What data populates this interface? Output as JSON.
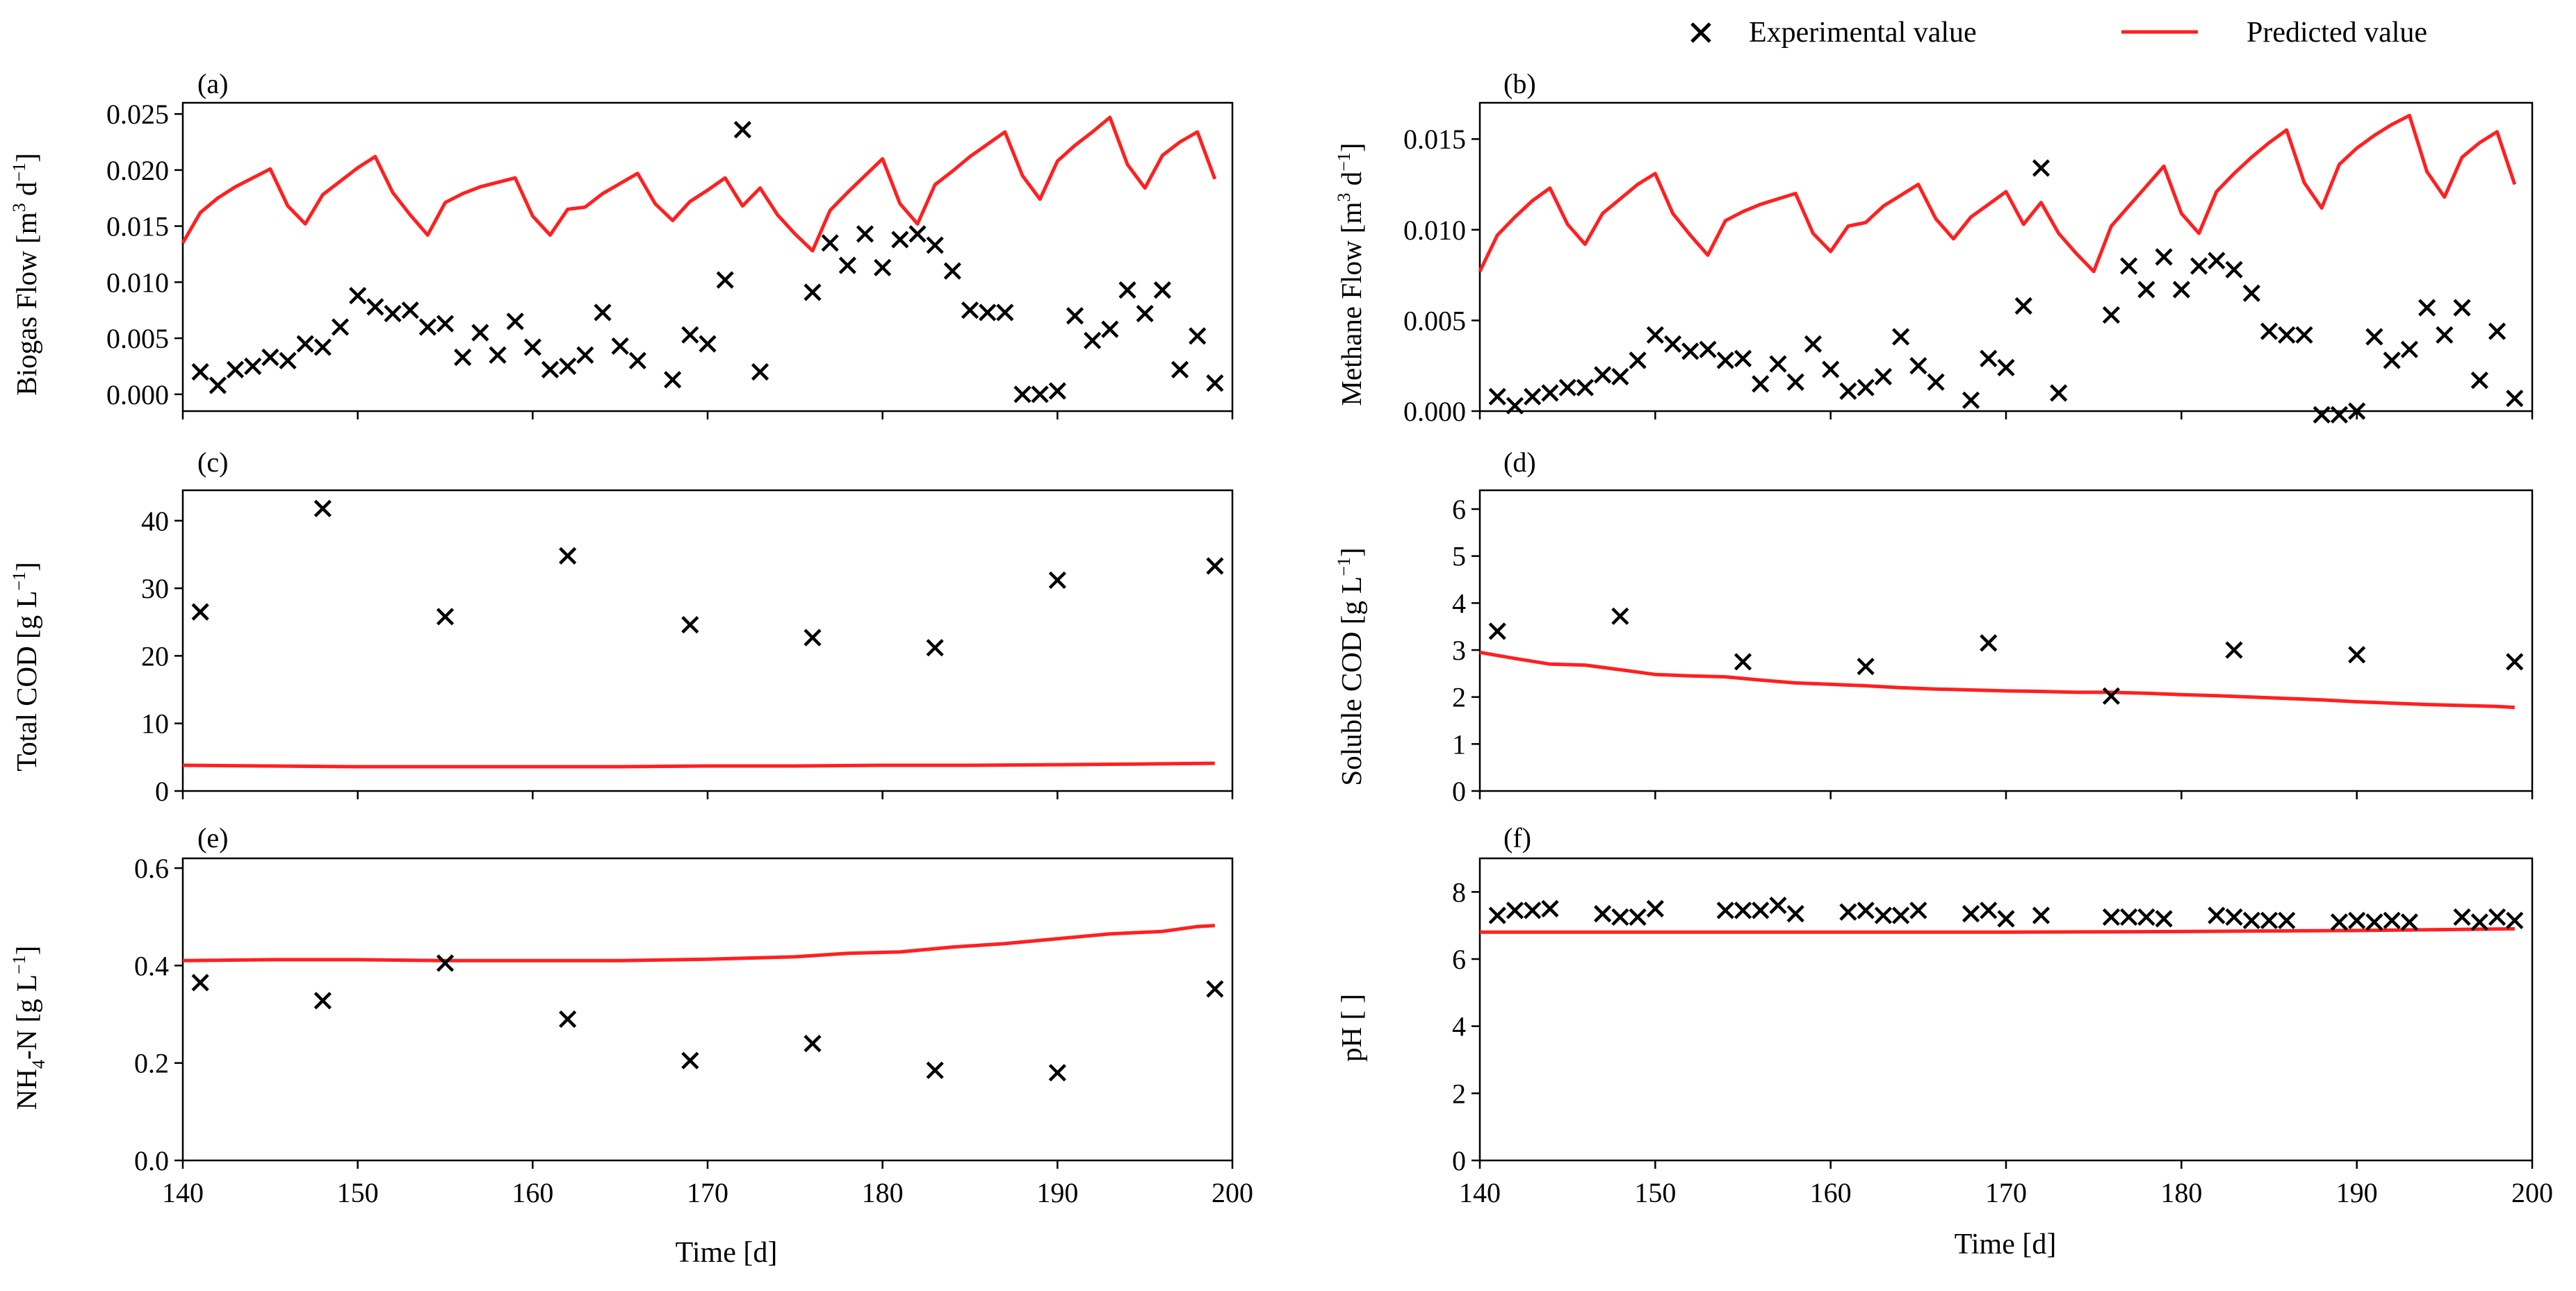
{
  "legend": {
    "experimental_label": "Experimental value",
    "predicted_label": "Predicted value",
    "predicted_color": "#ff2020",
    "marker_color": "#000000"
  },
  "chart_data": [
    {
      "id": "a",
      "panel_label": "(a)",
      "type": "line+scatter",
      "ylabel_main": "Biogas Flow [m",
      "ylabel_sup1": "3",
      "ylabel_mid": " d",
      "ylabel_sup2": "−1",
      "ylabel_end": "]",
      "xlabel": "",
      "xlim": [
        140,
        200
      ],
      "ylim": [
        -0.0015,
        0.026
      ],
      "yticks": [
        0.0,
        0.005,
        0.01,
        0.015,
        0.02,
        0.025
      ],
      "ytick_labels": [
        "0.000",
        "0.005",
        "0.010",
        "0.015",
        "0.020",
        "0.025"
      ],
      "xticks": [
        140,
        150,
        160,
        170,
        180,
        190,
        200
      ],
      "xtick_labels": [
        "",
        "",
        "",
        "",
        "",
        "",
        ""
      ],
      "predicted": {
        "x": [
          140,
          141,
          142,
          143,
          144,
          145,
          146,
          147,
          148,
          149,
          150,
          151,
          152,
          153,
          154,
          155,
          156,
          157,
          158,
          159,
          160,
          161,
          162,
          163,
          164,
          165,
          166,
          167,
          168,
          169,
          170,
          171,
          172,
          173,
          174,
          175,
          176,
          177,
          178,
          179,
          180,
          181,
          182,
          183,
          184,
          185,
          186,
          187,
          188,
          189,
          190,
          191,
          192,
          193,
          194,
          195,
          196,
          197,
          198,
          199
        ],
        "y": [
          0.0135,
          0.0162,
          0.0175,
          0.0185,
          0.0193,
          0.0201,
          0.0168,
          0.0152,
          0.0178,
          0.019,
          0.0202,
          0.0212,
          0.018,
          0.016,
          0.0142,
          0.0171,
          0.0179,
          0.0185,
          0.0189,
          0.0193,
          0.0159,
          0.0142,
          0.0165,
          0.0167,
          0.0179,
          0.0188,
          0.0197,
          0.017,
          0.0155,
          0.0172,
          0.0182,
          0.0193,
          0.0168,
          0.0184,
          0.016,
          0.0143,
          0.0128,
          0.0164,
          0.018,
          0.0195,
          0.021,
          0.017,
          0.0152,
          0.0187,
          0.0199,
          0.0212,
          0.0223,
          0.0234,
          0.0195,
          0.0174,
          0.0208,
          0.0222,
          0.0234,
          0.0247,
          0.0205,
          0.0184,
          0.0213,
          0.0225,
          0.0234,
          0.0192
        ]
      },
      "experimental": {
        "x": [
          141,
          142,
          143,
          144,
          145,
          146,
          147,
          148,
          149,
          150,
          151,
          152,
          153,
          154,
          155,
          156,
          157,
          158,
          159,
          160,
          161,
          162,
          163,
          164,
          165,
          166,
          168,
          169,
          170,
          171,
          172,
          173,
          176,
          177,
          178,
          179,
          180,
          181,
          182,
          183,
          184,
          185,
          186,
          187,
          188,
          189,
          190,
          191,
          192,
          193,
          194,
          195,
          196,
          197,
          198,
          199
        ],
        "y": [
          0.002,
          0.0008,
          0.0022,
          0.0025,
          0.0033,
          0.003,
          0.0045,
          0.0042,
          0.006,
          0.0088,
          0.0078,
          0.0072,
          0.0075,
          0.006,
          0.0063,
          0.0033,
          0.0055,
          0.0035,
          0.0065,
          0.0042,
          0.0022,
          0.0025,
          0.0035,
          0.0073,
          0.0043,
          0.003,
          0.0013,
          0.0053,
          0.0045,
          0.0102,
          0.0236,
          0.002,
          0.0091,
          0.0135,
          0.0115,
          0.0143,
          0.0113,
          0.0138,
          0.0143,
          0.0133,
          0.011,
          0.0075,
          0.0073,
          0.0073,
          0.0,
          0.0,
          0.0003,
          0.007,
          0.0048,
          0.0058,
          0.0093,
          0.0072,
          0.0093,
          0.0022,
          0.0052,
          0.001
        ]
      }
    },
    {
      "id": "b",
      "panel_label": "(b)",
      "type": "line+scatter",
      "ylabel_main": "Methane Flow [m",
      "ylabel_sup1": "3",
      "ylabel_mid": " d",
      "ylabel_sup2": "−1",
      "ylabel_end": "]",
      "xlabel": "",
      "xlim": [
        140,
        200
      ],
      "ylim": [
        0.0,
        0.017
      ],
      "yticks": [
        0.0,
        0.005,
        0.01,
        0.015
      ],
      "ytick_labels": [
        "0.000",
        "0.005",
        "0.010",
        "0.015"
      ],
      "xticks": [
        140,
        150,
        160,
        170,
        180,
        190,
        200
      ],
      "xtick_labels": [
        "",
        "",
        "",
        "",
        "",
        "",
        ""
      ],
      "predicted": {
        "x": [
          140,
          141,
          142,
          143,
          144,
          145,
          146,
          147,
          148,
          149,
          150,
          151,
          152,
          153,
          154,
          155,
          156,
          157,
          158,
          159,
          160,
          161,
          162,
          163,
          164,
          165,
          166,
          167,
          168,
          169,
          170,
          171,
          172,
          173,
          174,
          175,
          176,
          177,
          178,
          179,
          180,
          181,
          182,
          183,
          184,
          185,
          186,
          187,
          188,
          189,
          190,
          191,
          192,
          193,
          194,
          195,
          196,
          197,
          198,
          199
        ],
        "y": [
          0.0077,
          0.0097,
          0.0107,
          0.0116,
          0.0123,
          0.0103,
          0.0092,
          0.0109,
          0.0117,
          0.0125,
          0.0131,
          0.0109,
          0.0097,
          0.0086,
          0.0105,
          0.011,
          0.0114,
          0.0117,
          0.012,
          0.0098,
          0.0088,
          0.0102,
          0.0104,
          0.0113,
          0.0119,
          0.0125,
          0.0106,
          0.0095,
          0.0107,
          0.0114,
          0.0121,
          0.0103,
          0.0115,
          0.0098,
          0.0087,
          0.0077,
          0.0102,
          0.0113,
          0.0124,
          0.0135,
          0.0109,
          0.0098,
          0.0121,
          0.0131,
          0.014,
          0.0148,
          0.0155,
          0.0126,
          0.0112,
          0.0136,
          0.0145,
          0.0152,
          0.0158,
          0.0163,
          0.0132,
          0.0118,
          0.014,
          0.0148,
          0.0154,
          0.0125
        ]
      },
      "experimental": {
        "x": [
          141,
          142,
          143,
          144,
          145,
          146,
          147,
          148,
          149,
          150,
          151,
          152,
          153,
          154,
          155,
          156,
          157,
          158,
          159,
          160,
          161,
          162,
          163,
          164,
          165,
          166,
          168,
          169,
          170,
          171,
          172,
          173,
          176,
          177,
          178,
          179,
          180,
          181,
          182,
          183,
          184,
          185,
          186,
          187,
          188,
          189,
          190,
          191,
          192,
          193,
          194,
          195,
          196,
          197,
          198,
          199
        ],
        "y": [
          0.0008,
          0.0003,
          0.0008,
          0.001,
          0.0013,
          0.0013,
          0.002,
          0.0019,
          0.0028,
          0.0042,
          0.0037,
          0.0033,
          0.0034,
          0.0028,
          0.0029,
          0.0015,
          0.0026,
          0.0016,
          0.0037,
          0.0023,
          0.0011,
          0.0013,
          0.0019,
          0.0041,
          0.0025,
          0.0016,
          0.0006,
          0.0029,
          0.0024,
          0.0058,
          0.0134,
          0.001,
          0.0053,
          0.008,
          0.0067,
          0.0085,
          0.0067,
          0.008,
          0.0083,
          0.0078,
          0.0065,
          0.0044,
          0.0042,
          0.0042,
          -0.0002,
          -0.0002,
          0.0,
          0.0041,
          0.0028,
          0.0034,
          0.0057,
          0.0042,
          0.0057,
          0.0017,
          0.0044,
          0.0007
        ]
      }
    },
    {
      "id": "c",
      "panel_label": "(c)",
      "type": "line+scatter",
      "ylabel_main": "Total COD [g L",
      "ylabel_sup1": "",
      "ylabel_mid": "",
      "ylabel_sup2": "−1",
      "ylabel_end": "]",
      "xlabel": "",
      "xlim": [
        140,
        200
      ],
      "ylim": [
        0,
        44.5
      ],
      "yticks": [
        0,
        10,
        20,
        30,
        40
      ],
      "ytick_labels": [
        "0",
        "10",
        "20",
        "30",
        "40"
      ],
      "xticks": [
        140,
        150,
        160,
        170,
        180,
        190,
        200
      ],
      "xtick_labels": [
        "",
        "",
        "",
        "",
        "",
        "",
        ""
      ],
      "predicted": {
        "x": [
          140,
          145,
          150,
          155,
          160,
          165,
          170,
          175,
          180,
          185,
          190,
          195,
          199
        ],
        "y": [
          3.8,
          3.7,
          3.6,
          3.6,
          3.6,
          3.6,
          3.7,
          3.7,
          3.8,
          3.8,
          3.9,
          4.0,
          4.1
        ]
      },
      "experimental": {
        "x": [
          141,
          148,
          155,
          162,
          169,
          176,
          183,
          190,
          199
        ],
        "y": [
          26.5,
          41.8,
          25.8,
          34.8,
          24.6,
          22.7,
          21.2,
          31.2,
          33.3
        ]
      }
    },
    {
      "id": "d",
      "panel_label": "(d)",
      "type": "line+scatter",
      "ylabel_main": "Soluble COD [g L",
      "ylabel_sup1": "",
      "ylabel_mid": "",
      "ylabel_sup2": "−1",
      "ylabel_end": "]",
      "xlabel": "",
      "xlim": [
        140,
        200
      ],
      "ylim": [
        0,
        6.4
      ],
      "yticks": [
        0,
        1,
        2,
        3,
        4,
        5,
        6
      ],
      "ytick_labels": [
        "0",
        "1",
        "2",
        "3",
        "4",
        "5",
        "6"
      ],
      "xticks": [
        140,
        150,
        160,
        170,
        180,
        190,
        200
      ],
      "xtick_labels": [
        "",
        "",
        "",
        "",
        "",
        "",
        ""
      ],
      "predicted": {
        "x": [
          140,
          142,
          144,
          146,
          148,
          150,
          152,
          154,
          156,
          158,
          160,
          162,
          164,
          166,
          168,
          170,
          172,
          174,
          176,
          178,
          180,
          182,
          184,
          186,
          188,
          190,
          192,
          194,
          196,
          198,
          199
        ],
        "y": [
          2.95,
          2.82,
          2.7,
          2.68,
          2.58,
          2.48,
          2.45,
          2.43,
          2.36,
          2.3,
          2.27,
          2.24,
          2.2,
          2.17,
          2.15,
          2.13,
          2.12,
          2.1,
          2.1,
          2.08,
          2.05,
          2.03,
          2.0,
          1.97,
          1.94,
          1.9,
          1.87,
          1.84,
          1.82,
          1.8,
          1.78
        ]
      },
      "experimental": {
        "x": [
          141,
          148,
          155,
          162,
          169,
          176,
          183,
          190,
          199
        ],
        "y": [
          3.4,
          3.72,
          2.75,
          2.65,
          3.15,
          2.02,
          3.0,
          2.9,
          2.75
        ]
      }
    },
    {
      "id": "e",
      "panel_label": "(e)",
      "type": "line+scatter",
      "ylabel_main": "NH",
      "ylabel_sub": "4",
      "ylabel_after": "-N [g L",
      "ylabel_sup2": "−1",
      "ylabel_end": "]",
      "xlabel": "Time [d]",
      "xlim": [
        140,
        200
      ],
      "ylim": [
        0.0,
        0.62
      ],
      "yticks": [
        0.0,
        0.2,
        0.4,
        0.6
      ],
      "ytick_labels": [
        "0.0",
        "0.2",
        "0.4",
        "0.6"
      ],
      "xticks": [
        140,
        150,
        160,
        170,
        180,
        190,
        200
      ],
      "xtick_labels": [
        "140",
        "150",
        "160",
        "170",
        "180",
        "190",
        "200"
      ],
      "predicted": {
        "x": [
          140,
          145,
          150,
          155,
          160,
          165,
          170,
          175,
          178,
          181,
          184,
          187,
          190,
          193,
          196,
          198,
          199
        ],
        "y": [
          0.41,
          0.412,
          0.412,
          0.41,
          0.41,
          0.41,
          0.413,
          0.418,
          0.425,
          0.428,
          0.438,
          0.445,
          0.455,
          0.465,
          0.47,
          0.48,
          0.482
        ]
      },
      "experimental": {
        "x": [
          141,
          148,
          155,
          162,
          169,
          176,
          183,
          190,
          199
        ],
        "y": [
          0.365,
          0.328,
          0.405,
          0.29,
          0.205,
          0.24,
          0.185,
          0.18,
          0.352
        ]
      }
    },
    {
      "id": "f",
      "panel_label": "(f)",
      "type": "line+scatter",
      "ylabel_main": "pH [ ]",
      "ylabel_sup1": "",
      "ylabel_mid": "",
      "ylabel_sup2": "",
      "ylabel_end": "",
      "xlabel": "Time [d]",
      "xlim": [
        140,
        200
      ],
      "ylim": [
        0,
        9
      ],
      "yticks": [
        0,
        2,
        4,
        6,
        8
      ],
      "ytick_labels": [
        "0",
        "2",
        "4",
        "6",
        "8"
      ],
      "xticks": [
        140,
        150,
        160,
        170,
        180,
        190,
        200
      ],
      "xtick_labels": [
        "140",
        "150",
        "160",
        "170",
        "180",
        "190",
        "200"
      ],
      "predicted": {
        "x": [
          140,
          150,
          160,
          170,
          180,
          190,
          199
        ],
        "y": [
          6.8,
          6.8,
          6.8,
          6.8,
          6.82,
          6.85,
          6.9
        ]
      },
      "experimental": {
        "x": [
          141,
          142,
          143,
          144,
          147,
          148,
          149,
          150,
          154,
          155,
          156,
          157,
          158,
          161,
          162,
          163,
          164,
          165,
          168,
          169,
          170,
          172,
          176,
          177,
          178,
          179,
          182,
          183,
          184,
          185,
          186,
          189,
          190,
          191,
          192,
          193,
          196,
          197,
          198,
          199
        ],
        "y": [
          7.3,
          7.45,
          7.45,
          7.5,
          7.35,
          7.25,
          7.25,
          7.5,
          7.45,
          7.45,
          7.45,
          7.6,
          7.35,
          7.4,
          7.45,
          7.3,
          7.3,
          7.45,
          7.35,
          7.45,
          7.2,
          7.3,
          7.25,
          7.25,
          7.25,
          7.2,
          7.3,
          7.25,
          7.15,
          7.15,
          7.15,
          7.1,
          7.15,
          7.1,
          7.15,
          7.1,
          7.25,
          7.1,
          7.25,
          7.15
        ]
      }
    }
  ]
}
